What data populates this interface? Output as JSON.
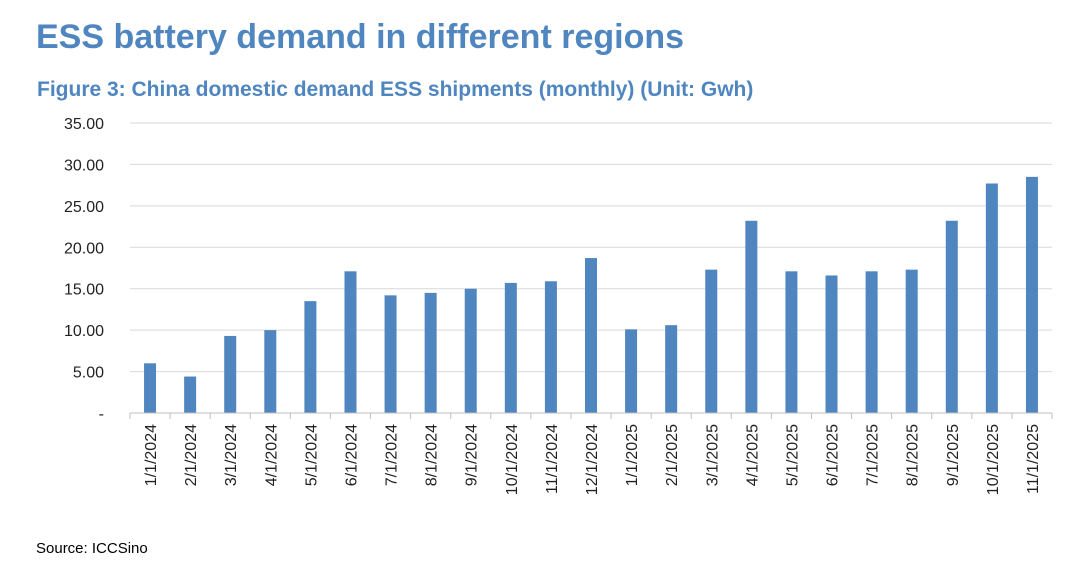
{
  "header": {
    "title": "ESS battery demand in different regions"
  },
  "chart_data": {
    "type": "bar",
    "title": "Figure 3: China domestic demand ESS shipments (monthly) (Unit: Gwh)",
    "xlabel": "",
    "ylabel": "",
    "ylim": [
      0,
      35
    ],
    "yticks": [
      0,
      5,
      10,
      15,
      20,
      25,
      30,
      35
    ],
    "ytick_labels": [
      "-",
      "5.00",
      "10.00",
      "15.00",
      "20.00",
      "25.00",
      "30.00",
      "35.00"
    ],
    "grid": true,
    "legend": "none",
    "bar_color": "#4f86c0",
    "grid_color": "#d9d9d9",
    "categories": [
      "1/1/2024",
      "2/1/2024",
      "3/1/2024",
      "4/1/2024",
      "5/1/2024",
      "6/1/2024",
      "7/1/2024",
      "8/1/2024",
      "9/1/2024",
      "10/1/2024",
      "11/1/2024",
      "12/1/2024",
      "1/1/2025",
      "2/1/2025",
      "3/1/2025",
      "4/1/2025",
      "5/1/2025",
      "6/1/2025",
      "7/1/2025",
      "8/1/2025",
      "9/1/2025",
      "10/1/2025",
      "11/1/2025"
    ],
    "values": [
      6.0,
      4.4,
      9.3,
      10.0,
      13.5,
      17.1,
      14.2,
      14.5,
      15.0,
      15.7,
      15.9,
      18.7,
      10.1,
      10.6,
      17.3,
      23.2,
      17.1,
      16.6,
      17.1,
      17.3,
      23.2,
      27.7,
      28.5
    ]
  },
  "footer": {
    "source": "Source: ICCSino"
  }
}
